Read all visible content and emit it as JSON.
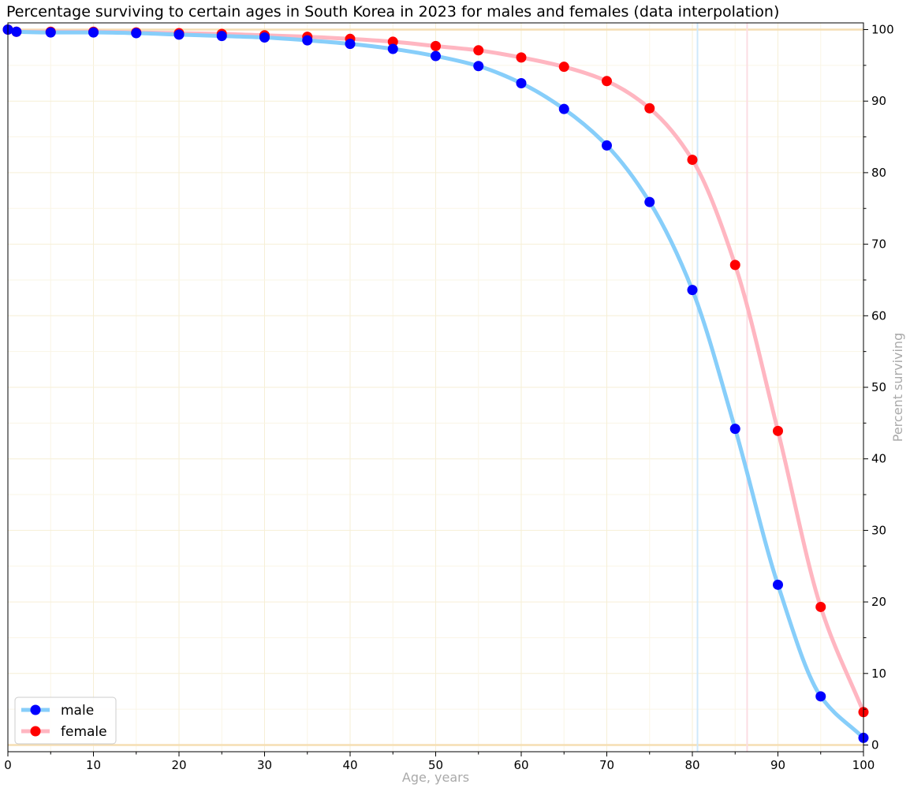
{
  "chart_data": {
    "type": "line",
    "title": "Percentage surviving to certain ages in South Korea in 2023 for males and females   (data interpolation)",
    "xlabel": "Age, years",
    "ylabel": "Percent surviving",
    "xlim": [
      0,
      100
    ],
    "ylim": [
      0,
      100
    ],
    "x_ticks": [
      0,
      10,
      20,
      30,
      40,
      50,
      60,
      70,
      80,
      90,
      100
    ],
    "y_ticks": [
      0,
      10,
      20,
      30,
      40,
      50,
      60,
      70,
      80,
      90,
      100
    ],
    "y_axis_side": "right",
    "grid": true,
    "legend_position": "lower-left",
    "reference_lines": {
      "horizontal": [
        0,
        100
      ],
      "horizontal_color": "#f5deb3",
      "vertical": [
        {
          "x": 80.6,
          "color": "#cfe8fb"
        },
        {
          "x": 86.4,
          "color": "#fbdde3"
        }
      ]
    },
    "series": [
      {
        "name": "male",
        "line_color": "#87cefa",
        "marker_color": "#0000ff",
        "x": [
          0,
          1,
          5,
          10,
          15,
          20,
          25,
          30,
          35,
          40,
          45,
          50,
          55,
          60,
          65,
          70,
          75,
          80,
          85,
          90,
          95,
          100
        ],
        "values": [
          100,
          99.7,
          99.6,
          99.6,
          99.5,
          99.3,
          99.1,
          98.9,
          98.5,
          98.0,
          97.3,
          96.3,
          94.9,
          92.5,
          88.9,
          83.8,
          75.9,
          63.6,
          44.2,
          22.4,
          6.8,
          1.0
        ]
      },
      {
        "name": "female",
        "line_color": "#ffb6c1",
        "marker_color": "#ff0000",
        "x": [
          0,
          1,
          5,
          10,
          15,
          20,
          25,
          30,
          35,
          40,
          45,
          50,
          55,
          60,
          65,
          70,
          75,
          80,
          85,
          90,
          95,
          100
        ],
        "values": [
          100,
          99.7,
          99.7,
          99.7,
          99.6,
          99.5,
          99.4,
          99.2,
          99.0,
          98.7,
          98.3,
          97.7,
          97.1,
          96.1,
          94.8,
          92.8,
          89.0,
          81.8,
          67.1,
          43.9,
          19.3,
          4.6
        ]
      }
    ]
  }
}
